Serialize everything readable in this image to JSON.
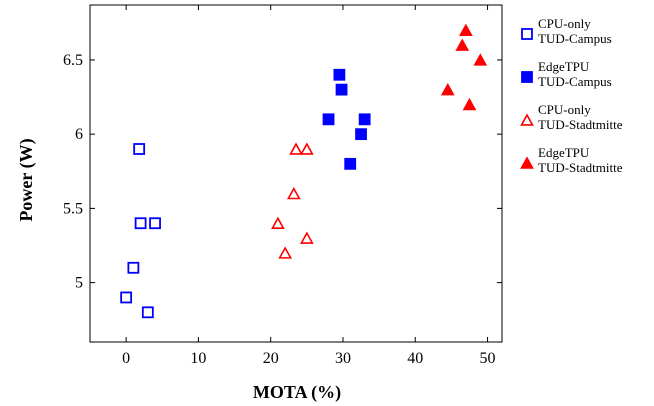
{
  "chart_data": {
    "type": "scatter",
    "title": "",
    "xlabel": "MOTA (%)",
    "ylabel": "Power (W)",
    "xlim": [
      -5,
      52
    ],
    "ylim": [
      4.6,
      6.87
    ],
    "x_ticks": [
      0,
      10,
      20,
      30,
      40,
      50
    ],
    "y_ticks": [
      5,
      5.5,
      6,
      6.5
    ],
    "y_tick_labels": [
      "5",
      "5.5",
      "6",
      "6.5"
    ],
    "grid": false,
    "legend_position": "right-outside",
    "series": [
      {
        "name_line1": "CPU-only",
        "name_line2": "TUD-Campus",
        "marker": "square",
        "filled": false,
        "color": "#0000ff",
        "points": [
          [
            0,
            4.9
          ],
          [
            1,
            5.1
          ],
          [
            1.8,
            5.9
          ],
          [
            2,
            5.4
          ],
          [
            3,
            4.8
          ],
          [
            4,
            5.4
          ]
        ]
      },
      {
        "name_line1": "EdgeTPU",
        "name_line2": "TUD-Campus",
        "marker": "square",
        "filled": true,
        "color": "#0000ff",
        "points": [
          [
            28,
            6.1
          ],
          [
            29.5,
            6.4
          ],
          [
            29.8,
            6.3
          ],
          [
            31,
            5.8
          ],
          [
            32.5,
            6.0
          ],
          [
            33,
            6.1
          ]
        ]
      },
      {
        "name_line1": "CPU-only",
        "name_line2": "TUD-Stadtmitte",
        "marker": "triangle",
        "filled": false,
        "color": "#ff0000",
        "points": [
          [
            21,
            5.4
          ],
          [
            22,
            5.2
          ],
          [
            23.2,
            5.6
          ],
          [
            23.5,
            5.9
          ],
          [
            25,
            5.9
          ],
          [
            25,
            5.3
          ]
        ]
      },
      {
        "name_line1": "EdgeTPU",
        "name_line2": "TUD-Stadtmitte",
        "marker": "triangle",
        "filled": true,
        "color": "#ff0000",
        "points": [
          [
            44.5,
            6.3
          ],
          [
            46.5,
            6.6
          ],
          [
            47,
            6.7
          ],
          [
            47.5,
            6.2
          ],
          [
            49,
            6.5
          ]
        ]
      }
    ]
  }
}
